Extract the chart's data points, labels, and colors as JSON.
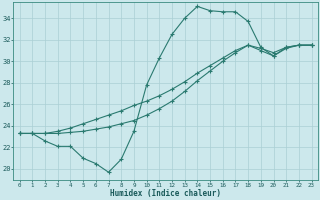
{
  "xlabel": "Humidex (Indice chaleur)",
  "bg_color": "#cce8ec",
  "grid_color": "#aacfd4",
  "line_color": "#2a7a70",
  "xlim": [
    -0.5,
    23.5
  ],
  "ylim": [
    19.0,
    35.5
  ],
  "xticks": [
    0,
    1,
    2,
    3,
    4,
    5,
    6,
    7,
    8,
    9,
    10,
    11,
    12,
    13,
    14,
    15,
    16,
    17,
    18,
    19,
    20,
    21,
    22,
    23
  ],
  "yticks": [
    20,
    22,
    24,
    26,
    28,
    30,
    32,
    34
  ],
  "series1": [
    23.3,
    23.3,
    22.6,
    22.1,
    22.1,
    21.0,
    20.5,
    19.7,
    20.9,
    23.5,
    27.8,
    30.3,
    32.5,
    34.0,
    35.1,
    34.7,
    34.6,
    34.6,
    33.7,
    31.3,
    30.5,
    31.2,
    31.5,
    31.5
  ],
  "series2": [
    23.3,
    23.3,
    23.3,
    23.3,
    23.4,
    23.5,
    23.7,
    23.9,
    24.2,
    24.5,
    25.0,
    25.6,
    26.3,
    27.2,
    28.2,
    29.1,
    30.0,
    30.8,
    31.5,
    31.0,
    30.5,
    31.3,
    31.5,
    31.5
  ],
  "series3": [
    23.3,
    23.3,
    23.3,
    23.5,
    23.8,
    24.2,
    24.6,
    25.0,
    25.4,
    25.9,
    26.3,
    26.8,
    27.4,
    28.1,
    28.9,
    29.6,
    30.3,
    31.0,
    31.5,
    31.2,
    30.8,
    31.3,
    31.5,
    31.5
  ]
}
